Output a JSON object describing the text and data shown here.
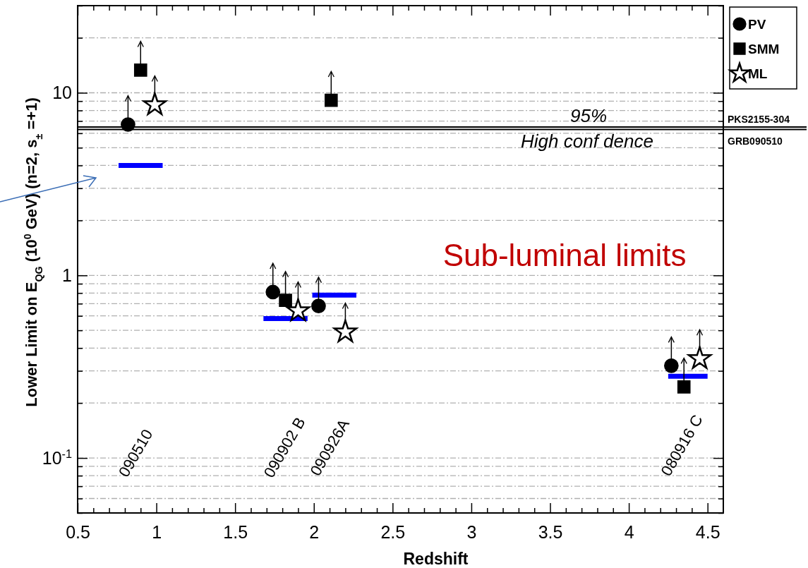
{
  "chart_data": {
    "type": "scatter",
    "xlabel": "Redshift",
    "ylabel": "Lower Limit on E$_{QG}$  (10$^{0}$  GeV) (n=2, s$_{±}$ =+1)",
    "log": "y",
    "grid": "y",
    "legend": "top right",
    "xlim": [
      0.5,
      4.6
    ],
    "xticks": [
      0.5,
      {
        "value": 0.6,
        "label": null
      },
      {
        "value": 0.7,
        "label": null
      },
      {
        "value": 0.8,
        "label": null
      },
      {
        "value": 0.9,
        "label": null
      },
      1,
      {
        "value": 1.1,
        "label": null
      },
      {
        "value": 1.2,
        "label": null
      },
      {
        "value": 1.3,
        "label": null
      },
      {
        "value": 1.4,
        "label": null
      },
      1.5,
      {
        "value": 1.6,
        "label": null
      },
      {
        "value": 1.7,
        "label": null
      },
      {
        "value": 1.8,
        "label": null
      },
      {
        "value": 1.9,
        "label": null
      },
      2,
      {
        "value": 2.1,
        "label": null
      },
      {
        "value": 2.2,
        "label": null
      },
      {
        "value": 2.3,
        "label": null
      },
      {
        "value": 2.4,
        "label": null
      },
      2.5,
      {
        "value": 2.6,
        "label": null
      },
      {
        "value": 2.7,
        "label": null
      },
      {
        "value": 2.8,
        "label": null
      },
      {
        "value": 2.9,
        "label": null
      },
      3,
      {
        "value": 3.1,
        "label": null
      },
      {
        "value": 3.2,
        "label": null
      },
      {
        "value": 3.3,
        "label": null
      },
      {
        "value": 3.4,
        "label": null
      },
      3.5,
      {
        "value": 3.6,
        "label": null
      },
      {
        "value": 3.7,
        "label": null
      },
      {
        "value": 3.8,
        "label": null
      },
      {
        "value": 3.9,
        "label": null
      },
      4,
      {
        "value": 4.1,
        "label": null
      },
      {
        "value": 4.2,
        "label": null
      },
      {
        "value": 4.3,
        "label": null
      },
      {
        "value": 4.4,
        "label": null
      },
      4.5
    ],
    "ylim": [
      0.05,
      30
    ],
    "yticks": [
      {
        "value": 0.05,
        "label": null
      },
      {
        "value": 0.06,
        "label": null
      },
      {
        "value": 0.07,
        "label": null
      },
      {
        "value": 0.08,
        "label": null
      },
      {
        "value": 0.09,
        "label": null
      },
      {
        "value": 0.1,
        "label": "10$^{-1}$"
      },
      {
        "value": 0.2,
        "label": null
      },
      {
        "value": 0.3,
        "label": null
      },
      {
        "value": 0.4,
        "label": null
      },
      {
        "value": 0.5,
        "label": null
      },
      {
        "value": 0.6,
        "label": null
      },
      {
        "value": 0.7,
        "label": null
      },
      {
        "value": 0.8,
        "label": null
      },
      {
        "value": 0.9,
        "label": null
      },
      1,
      {
        "value": 2,
        "label": null
      },
      {
        "value": 3,
        "label": null
      },
      {
        "value": 4,
        "label": null
      },
      {
        "value": 5,
        "label": null
      },
      {
        "value": 6,
        "label": null
      },
      {
        "value": 7,
        "label": null
      },
      {
        "value": 8,
        "label": null
      },
      {
        "value": 9,
        "label": null
      },
      10,
      {
        "value": 20,
        "label": null
      },
      {
        "value": 30,
        "label": null
      }
    ],
    "series": [
      {
        "name": "PV",
        "color": "#000000",
        "marker": "circle",
        "x": [
          0.82,
          1.74,
          2.03,
          4.27
        ],
        "values": [
          6.7,
          0.81,
          0.68,
          0.32
        ]
      },
      {
        "name": "SMM",
        "color": "#000000",
        "marker": "square",
        "x": [
          0.9,
          1.82,
          2.11,
          4.35
        ],
        "values": [
          13.3,
          0.73,
          9.1,
          0.245
        ]
      },
      {
        "name": "ML",
        "color": "#000000",
        "marker": "star",
        "x": [
          0.99,
          1.9,
          2.2,
          4.45
        ],
        "values": [
          8.6,
          0.64,
          0.49,
          0.35
        ]
      },
      {
        "type": "line",
        "color": "#0000ff",
        "x": [
          0.76,
          1.04
        ],
        "values": [
          4.0,
          4.0
        ]
      },
      {
        "type": "line",
        "color": "#0000ff",
        "x": [
          1.68,
          1.96
        ],
        "values": [
          0.58,
          0.58
        ]
      },
      {
        "type": "line",
        "color": "#0000ff",
        "x": [
          1.99,
          2.27
        ],
        "values": [
          0.78,
          0.78
        ]
      },
      {
        "type": "line",
        "color": "#0000ff",
        "x": [
          4.25,
          4.5
        ],
        "values": [
          0.28,
          0.28
        ]
      }
    ],
    "ref_lines": [
      {
        "axis": "y",
        "value": 6.5,
        "label": "PKS2155-304",
        "color": "#000000"
      },
      {
        "axis": "y",
        "value": 6.3,
        "label": "GRB090510",
        "color": "#000000"
      }
    ],
    "annotations": [
      "090510",
      "090902 B",
      "090926A",
      "080916 C",
      "95%",
      "High conf dence",
      "Sub-luminal limits"
    ]
  }
}
